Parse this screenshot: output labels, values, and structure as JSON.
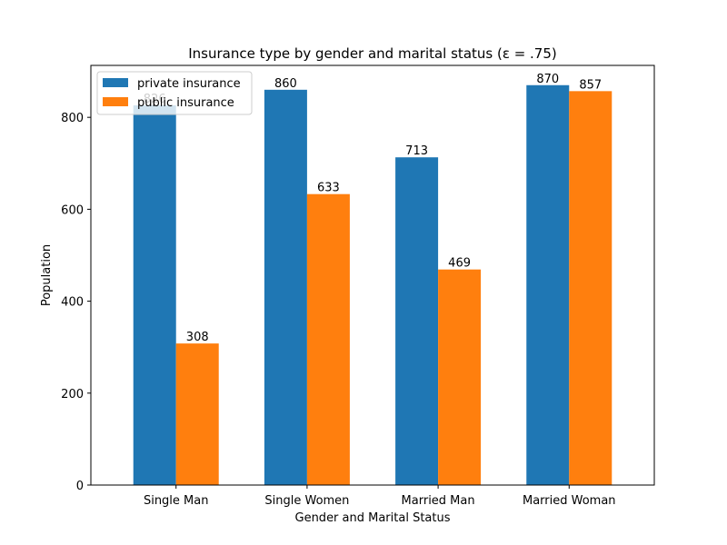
{
  "chart_data": {
    "type": "bar",
    "title": "Insurance type by gender and marital status (ε = .75)",
    "xlabel": "Gender and Marital Status",
    "ylabel": "Population",
    "categories": [
      "Single Man",
      "Single Women",
      "Married Man",
      "Married Woman"
    ],
    "series": [
      {
        "name": "private insurance",
        "values": [
          826,
          860,
          713,
          870
        ],
        "labels": [
          "826",
          "860",
          "713",
          "870"
        ],
        "color": "#1f77b4"
      },
      {
        "name": "public insurance",
        "values": [
          308,
          633,
          469,
          857
        ],
        "labels": [
          "308",
          "633",
          "469",
          "857"
        ],
        "color": "#ff7f0e"
      }
    ],
    "ylim": [
      0,
      913
    ],
    "yticks": [
      0,
      200,
      400,
      600,
      800
    ],
    "grid": false,
    "legend_position": "top-left"
  }
}
